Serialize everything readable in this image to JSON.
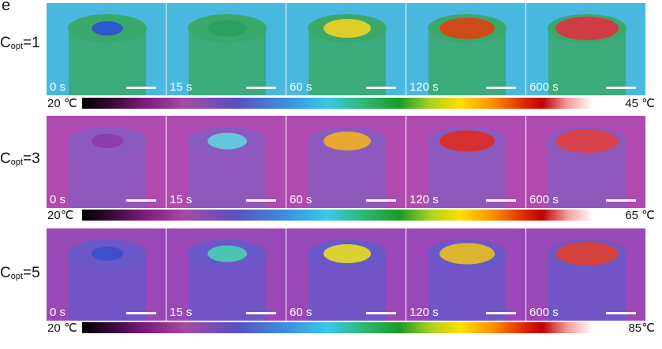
{
  "figure": {
    "panel_letter": "e",
    "rows": [
      {
        "label_main": "C",
        "label_sub": "opt",
        "label_value": "=1",
        "times": [
          "0 s",
          "15 s",
          "60 s",
          "120 s",
          "600 s"
        ],
        "colorbar": {
          "min": "20 ℃",
          "max": "45 ℃"
        },
        "background": "#48b8de",
        "body": "#3aa86a",
        "hot": [
          "#2b4fd8",
          "#2aa060",
          "#f0d020",
          "#e04010",
          "#e03040"
        ]
      },
      {
        "label_main": "C",
        "label_sub": "opt",
        "label_value": "=3",
        "times": [
          "0 s",
          "15 s",
          "60 s",
          "120 s",
          "600 s"
        ],
        "colorbar": {
          "min": "20℃",
          "max": "65 ℃"
        },
        "background": "#b04ab0",
        "body": "#8a5ac0",
        "hot": [
          "#8a3aa8",
          "#5fd0e0",
          "#f0b020",
          "#e02a20",
          "#e04040"
        ]
      },
      {
        "label_main": "C",
        "label_sub": "opt",
        "label_value": "=5",
        "times": [
          "0 s",
          "15 s",
          "60 s",
          "120 s",
          "600 s"
        ],
        "colorbar": {
          "min": "20 ℃",
          "max": "85℃"
        },
        "background": "#9a48b8",
        "body": "#6a58c8",
        "hot": [
          "#3a50c8",
          "#48d0b0",
          "#e8e020",
          "#e8c020",
          "#e04030"
        ]
      }
    ]
  }
}
